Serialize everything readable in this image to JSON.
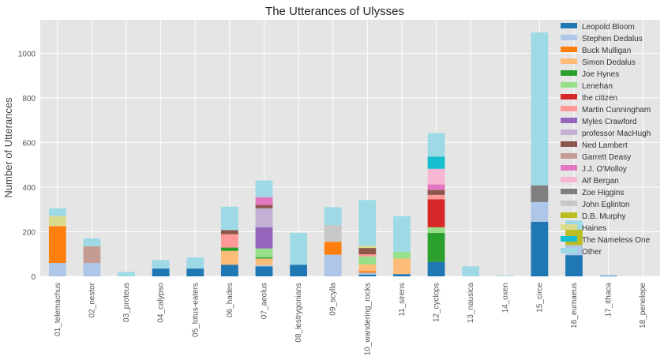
{
  "chart_data": {
    "type": "bar",
    "stacked": true,
    "title": "The Utterances of Ulysses",
    "xlabel": "",
    "ylabel": "Number of Utterances",
    "ylim": [
      0,
      1150
    ],
    "yticks": [
      0,
      200,
      400,
      600,
      800,
      1000
    ],
    "grid": true,
    "legend_position": "top-right",
    "categories": [
      "01_telemachus",
      "02_nestor",
      "03_proteus",
      "04_calypso",
      "05_lotus-eaters",
      "06_hades",
      "07_aeolus",
      "08_lestrygonians",
      "09_scylla",
      "10_wandering_rocks",
      "11_sirens",
      "12_cyclops",
      "13_nausica",
      "14_oxen",
      "15_circe",
      "16_eumaeus",
      "17_ithaca",
      "18_penelope"
    ],
    "series": [
      {
        "name": "Leopold Bloom",
        "color": "#1f77b4",
        "values": [
          0,
          0,
          0,
          35,
          35,
          52,
          45,
          52,
          0,
          8,
          10,
          65,
          0,
          0,
          245,
          95,
          3,
          0
        ]
      },
      {
        "name": "Stephen Dedalus",
        "color": "#aec7e8",
        "values": [
          60,
          60,
          0,
          0,
          0,
          0,
          5,
          0,
          97,
          8,
          0,
          0,
          0,
          0,
          88,
          45,
          0,
          0
        ]
      },
      {
        "name": "Buck Mulligan",
        "color": "#ff7f0e",
        "values": [
          165,
          0,
          0,
          0,
          0,
          0,
          0,
          0,
          58,
          8,
          0,
          0,
          0,
          0,
          0,
          0,
          0,
          0
        ]
      },
      {
        "name": "Simon Dedalus",
        "color": "#ffbb78",
        "values": [
          0,
          0,
          0,
          0,
          0,
          62,
          30,
          0,
          0,
          30,
          70,
          0,
          0,
          0,
          0,
          0,
          0,
          0
        ]
      },
      {
        "name": "Joe Hynes",
        "color": "#2ca02c",
        "values": [
          0,
          0,
          0,
          0,
          0,
          15,
          5,
          0,
          0,
          0,
          0,
          130,
          0,
          0,
          0,
          0,
          0,
          0
        ]
      },
      {
        "name": "Lenehan",
        "color": "#98df8a",
        "values": [
          0,
          0,
          0,
          0,
          0,
          0,
          40,
          0,
          0,
          35,
          30,
          25,
          0,
          0,
          0,
          0,
          0,
          0
        ]
      },
      {
        "name": "the citizen",
        "color": "#d62728",
        "values": [
          0,
          0,
          0,
          0,
          0,
          0,
          0,
          0,
          0,
          0,
          0,
          125,
          0,
          0,
          0,
          0,
          0,
          0
        ]
      },
      {
        "name": "Martin Cunningham",
        "color": "#ff9896",
        "values": [
          0,
          0,
          0,
          0,
          0,
          60,
          0,
          0,
          0,
          10,
          0,
          20,
          0,
          0,
          0,
          0,
          0,
          0
        ]
      },
      {
        "name": "Myles Crawford",
        "color": "#9467bd",
        "values": [
          0,
          0,
          0,
          0,
          0,
          0,
          95,
          0,
          0,
          0,
          0,
          0,
          0,
          0,
          0,
          0,
          0,
          0
        ]
      },
      {
        "name": "professor MacHugh",
        "color": "#c5b0d5",
        "values": [
          0,
          0,
          0,
          0,
          0,
          0,
          85,
          0,
          0,
          0,
          0,
          0,
          0,
          0,
          0,
          0,
          0,
          0
        ]
      },
      {
        "name": "Ned Lambert",
        "color": "#8c564b",
        "values": [
          0,
          0,
          0,
          0,
          0,
          18,
          15,
          0,
          0,
          28,
          0,
          22,
          0,
          0,
          0,
          0,
          0,
          0
        ]
      },
      {
        "name": "Garrett Deasy",
        "color": "#c49c94",
        "values": [
          0,
          75,
          0,
          0,
          0,
          0,
          0,
          0,
          0,
          0,
          0,
          0,
          0,
          0,
          0,
          0,
          0,
          0
        ]
      },
      {
        "name": "J.J. O'Molloy",
        "color": "#e377c2",
        "values": [
          0,
          0,
          0,
          0,
          0,
          0,
          35,
          0,
          0,
          0,
          0,
          25,
          0,
          0,
          0,
          0,
          0,
          0
        ]
      },
      {
        "name": "Alf Bergan",
        "color": "#f7b6d2",
        "values": [
          0,
          0,
          0,
          0,
          0,
          0,
          0,
          0,
          0,
          0,
          0,
          70,
          0,
          0,
          0,
          0,
          0,
          0
        ]
      },
      {
        "name": "Zoe Higgins",
        "color": "#7f7f7f",
        "values": [
          0,
          0,
          0,
          0,
          0,
          0,
          0,
          0,
          0,
          0,
          0,
          0,
          0,
          0,
          75,
          0,
          0,
          0
        ]
      },
      {
        "name": "John Eglinton",
        "color": "#c7c7c7",
        "values": [
          0,
          0,
          0,
          0,
          0,
          0,
          0,
          0,
          75,
          0,
          0,
          0,
          0,
          0,
          0,
          0,
          0,
          0
        ]
      },
      {
        "name": "D.B. Murphy",
        "color": "#bcbd22",
        "values": [
          0,
          0,
          0,
          0,
          0,
          0,
          0,
          0,
          0,
          0,
          0,
          0,
          0,
          0,
          0,
          70,
          0,
          0
        ]
      },
      {
        "name": "Haines",
        "color": "#dbdb8d",
        "values": [
          45,
          0,
          0,
          0,
          0,
          0,
          0,
          0,
          0,
          10,
          0,
          0,
          0,
          0,
          0,
          0,
          0,
          0
        ]
      },
      {
        "name": "The Nameless One",
        "color": "#17becf",
        "values": [
          0,
          0,
          0,
          0,
          0,
          0,
          0,
          0,
          0,
          0,
          0,
          55,
          0,
          0,
          0,
          0,
          0,
          0
        ]
      },
      {
        "name": "Other",
        "color": "#9edae5",
        "values": [
          35,
          35,
          20,
          38,
          50,
          105,
          75,
          143,
          80,
          205,
          160,
          105,
          45,
          3,
          685,
          40,
          2,
          0
        ]
      }
    ]
  }
}
